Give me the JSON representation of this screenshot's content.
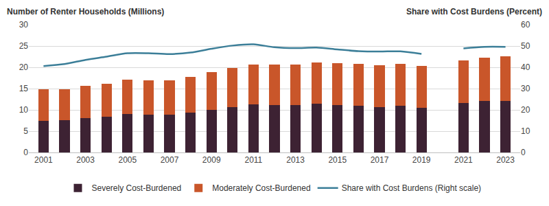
{
  "chart_data": {
    "type": "bar",
    "stacked": true,
    "grid": true,
    "legend": "bottom",
    "y_label": "Number of Renter Households (Millions)",
    "y2_label": "Share with Cost Burdens (Percent)",
    "categories": [
      "2001",
      null,
      "2003",
      null,
      "2005",
      null,
      "2007",
      null,
      "2009",
      null,
      "2011",
      null,
      "2013",
      null,
      "2015",
      null,
      "2017",
      null,
      "2019",
      null,
      "2021",
      null,
      "2023"
    ],
    "ylim": [
      0,
      30
    ],
    "yticks": [
      0,
      5,
      10,
      15,
      20,
      25,
      30
    ],
    "y2lim": [
      0,
      60
    ],
    "y2ticks": [
      0,
      10,
      20,
      30,
      40,
      50,
      60
    ],
    "series": [
      {
        "name": "Severely Cost-Burdened",
        "type": "bar",
        "color": "#3d2233",
        "values": [
          7.4,
          7.6,
          8.1,
          8.4,
          9.0,
          8.9,
          8.8,
          9.3,
          10.0,
          10.7,
          11.3,
          11.2,
          11.1,
          11.4,
          11.1,
          11.0,
          10.7,
          10.9,
          10.5,
          null,
          11.6,
          12.1,
          12.1
        ]
      },
      {
        "name": "Moderately Cost-Burdened",
        "type": "bar",
        "color": "#c9562a",
        "values": [
          7.4,
          7.3,
          7.6,
          7.8,
          8.1,
          8.1,
          8.2,
          8.4,
          8.8,
          9.1,
          9.3,
          9.4,
          9.6,
          9.8,
          9.9,
          9.8,
          9.8,
          9.9,
          9.9,
          null,
          10.0,
          10.2,
          10.5
        ]
      },
      {
        "name": "Share with Cost Burdens (Right scale)",
        "type": "line",
        "axis": "y2",
        "color": "#3b7e98",
        "line_style": "solid",
        "values": [
          40.6,
          41.5,
          43.5,
          45.0,
          46.6,
          46.6,
          46.2,
          46.9,
          48.7,
          50.2,
          50.8,
          49.4,
          49.0,
          49.3,
          48.4,
          47.6,
          47.4,
          47.5,
          46.3,
          null,
          48.9,
          49.6,
          49.6
        ]
      }
    ]
  }
}
